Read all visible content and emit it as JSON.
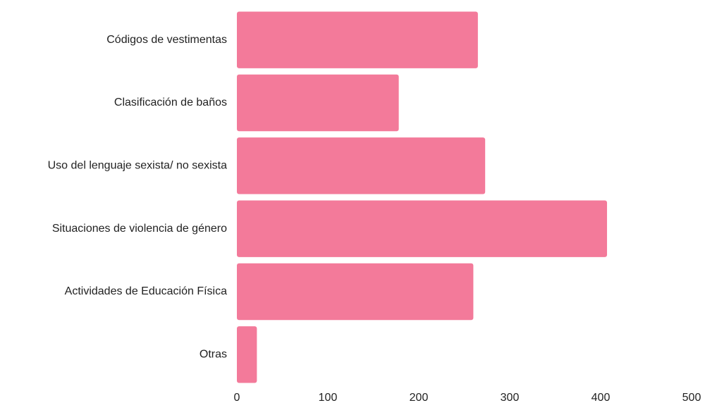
{
  "chart_data": {
    "type": "bar",
    "orientation": "horizontal",
    "categories": [
      "Códigos de vestimentas",
      "Clasificación de baños",
      "Uso del lenguaje sexista/ no sexista",
      "Situaciones de violencia de género",
      "Actividades de Educación Física",
      "Otras"
    ],
    "values": [
      265,
      178,
      273,
      407,
      260,
      22
    ],
    "color": "#f37a9a",
    "xlim": [
      0,
      500
    ],
    "xticks": [
      0,
      100,
      200,
      300,
      400,
      500
    ],
    "grid": false
  }
}
